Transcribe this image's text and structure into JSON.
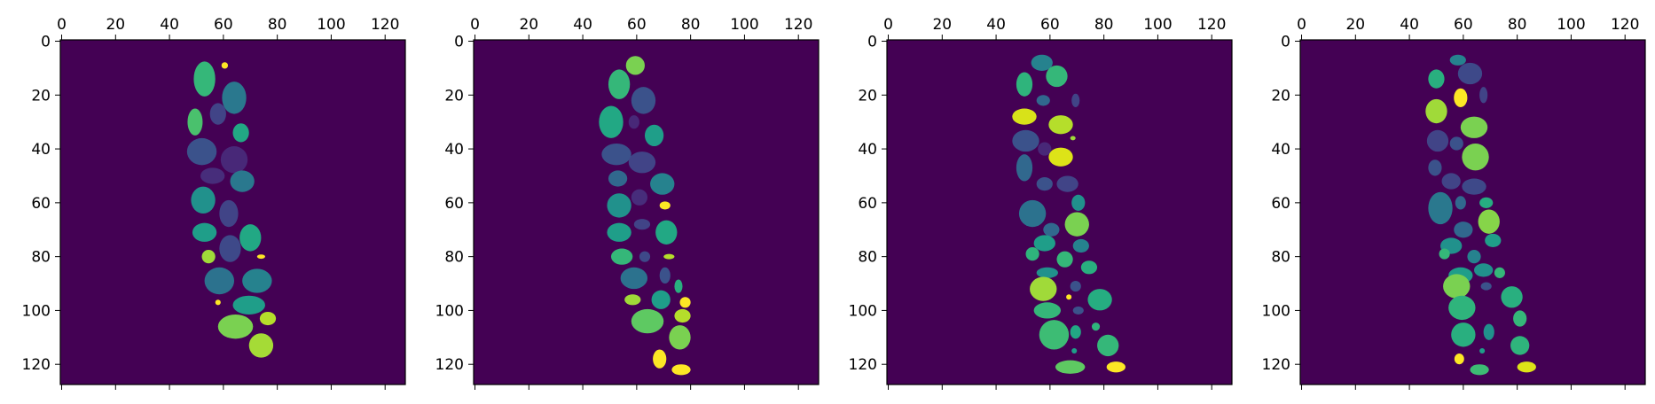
{
  "figure": {
    "background": "#ffffff",
    "panel_background": "#440154",
    "axis_color": "#000000",
    "colormap": "viridis"
  },
  "chart_data": [
    {
      "type": "heatmap",
      "x_ticks": [
        0,
        20,
        40,
        60,
        80,
        100,
        120
      ],
      "y_ticks": [
        0,
        20,
        40,
        60,
        80,
        100,
        120
      ],
      "xlim": [
        -0.5,
        127.5
      ],
      "ylim": [
        127.5,
        -0.5
      ],
      "x_axis_position": "top",
      "background_label": 0,
      "segments": [
        {
          "cx": 53,
          "cy": 14,
          "rx": 4.0,
          "ry": 6.5,
          "color": "#35b779"
        },
        {
          "cx": 60.5,
          "cy": 9,
          "rx": 1.2,
          "ry": 1.2,
          "color": "#fde725"
        },
        {
          "cx": 64,
          "cy": 21,
          "rx": 4.5,
          "ry": 6.0,
          "color": "#2a788e"
        },
        {
          "cx": 49.5,
          "cy": 30,
          "rx": 2.8,
          "ry": 5.0,
          "color": "#4ac16d"
        },
        {
          "cx": 58,
          "cy": 27,
          "rx": 3.0,
          "ry": 4.0,
          "color": "#414487"
        },
        {
          "cx": 66.5,
          "cy": 34,
          "rx": 3.0,
          "ry": 3.5,
          "color": "#22a884"
        },
        {
          "cx": 52,
          "cy": 41,
          "rx": 5.5,
          "ry": 5.0,
          "color": "#3b528b"
        },
        {
          "cx": 64,
          "cy": 44,
          "rx": 5.0,
          "ry": 5.0,
          "color": "#482878"
        },
        {
          "cx": 56,
          "cy": 50,
          "rx": 4.5,
          "ry": 3.0,
          "color": "#472d7b"
        },
        {
          "cx": 67,
          "cy": 52,
          "rx": 4.5,
          "ry": 4.0,
          "color": "#2a788e"
        },
        {
          "cx": 52.5,
          "cy": 59,
          "rx": 4.5,
          "ry": 5.0,
          "color": "#21918c"
        },
        {
          "cx": 62,
          "cy": 64,
          "rx": 3.5,
          "ry": 5.0,
          "color": "#414487"
        },
        {
          "cx": 53,
          "cy": 71,
          "rx": 4.5,
          "ry": 3.5,
          "color": "#1f9e89"
        },
        {
          "cx": 70,
          "cy": 73,
          "rx": 4.0,
          "ry": 5.0,
          "color": "#22a884"
        },
        {
          "cx": 62.5,
          "cy": 77,
          "rx": 4.0,
          "ry": 5.0,
          "color": "#3e4989"
        },
        {
          "cx": 54.5,
          "cy": 80,
          "rx": 2.5,
          "ry": 2.5,
          "color": "#a0da39"
        },
        {
          "cx": 74,
          "cy": 80,
          "rx": 1.5,
          "ry": 0.8,
          "color": "#fde725"
        },
        {
          "cx": 58.5,
          "cy": 89,
          "rx": 5.5,
          "ry": 5.0,
          "color": "#2c728e"
        },
        {
          "cx": 72.5,
          "cy": 89,
          "rx": 5.5,
          "ry": 4.5,
          "color": "#26828e"
        },
        {
          "cx": 69.5,
          "cy": 98,
          "rx": 6.0,
          "ry": 3.5,
          "color": "#1f9e89"
        },
        {
          "cx": 58,
          "cy": 97,
          "rx": 1.0,
          "ry": 1.0,
          "color": "#fde725"
        },
        {
          "cx": 64.5,
          "cy": 106,
          "rx": 6.5,
          "ry": 4.5,
          "color": "#7ad151"
        },
        {
          "cx": 76.5,
          "cy": 103,
          "rx": 3.0,
          "ry": 2.5,
          "color": "#b5de2b"
        },
        {
          "cx": 74,
          "cy": 113,
          "rx": 4.5,
          "ry": 4.5,
          "color": "#a5db36"
        }
      ]
    },
    {
      "type": "heatmap",
      "x_ticks": [
        0,
        20,
        40,
        60,
        80,
        100,
        120
      ],
      "y_ticks": [
        0,
        20,
        40,
        60,
        80,
        100,
        120
      ],
      "xlim": [
        -0.5,
        127.5
      ],
      "ylim": [
        127.5,
        -0.5
      ],
      "x_axis_position": "top",
      "background_label": 0,
      "segments": [
        {
          "cx": 59.5,
          "cy": 9,
          "rx": 3.5,
          "ry": 3.5,
          "color": "#7ad151"
        },
        {
          "cx": 53.5,
          "cy": 16,
          "rx": 4.0,
          "ry": 5.5,
          "color": "#35b779"
        },
        {
          "cx": 62.5,
          "cy": 22,
          "rx": 4.5,
          "ry": 5.0,
          "color": "#3b528b"
        },
        {
          "cx": 50.5,
          "cy": 30,
          "rx": 4.5,
          "ry": 6.0,
          "color": "#22a884"
        },
        {
          "cx": 59,
          "cy": 30,
          "rx": 2.0,
          "ry": 2.5,
          "color": "#482878"
        },
        {
          "cx": 66.5,
          "cy": 35,
          "rx": 3.5,
          "ry": 4.0,
          "color": "#1f9e89"
        },
        {
          "cx": 52.5,
          "cy": 42,
          "rx": 5.5,
          "ry": 4.0,
          "color": "#3b528b"
        },
        {
          "cx": 62,
          "cy": 45,
          "rx": 5.0,
          "ry": 4.0,
          "color": "#414487"
        },
        {
          "cx": 53,
          "cy": 51,
          "rx": 3.5,
          "ry": 3.0,
          "color": "#31688e"
        },
        {
          "cx": 69.5,
          "cy": 53,
          "rx": 4.5,
          "ry": 4.0,
          "color": "#26828e"
        },
        {
          "cx": 61,
          "cy": 58,
          "rx": 3.0,
          "ry": 3.0,
          "color": "#472d7b"
        },
        {
          "cx": 53.5,
          "cy": 61,
          "rx": 4.5,
          "ry": 4.5,
          "color": "#21918c"
        },
        {
          "cx": 70.5,
          "cy": 61,
          "rx": 2.0,
          "ry": 1.5,
          "color": "#fde725"
        },
        {
          "cx": 62,
          "cy": 68,
          "rx": 3.0,
          "ry": 2.0,
          "color": "#414487"
        },
        {
          "cx": 53.5,
          "cy": 71,
          "rx": 4.5,
          "ry": 3.5,
          "color": "#1f9e89"
        },
        {
          "cx": 71,
          "cy": 71,
          "rx": 4.0,
          "ry": 4.5,
          "color": "#22a884"
        },
        {
          "cx": 54.5,
          "cy": 80,
          "rx": 4.0,
          "ry": 3.0,
          "color": "#35b779"
        },
        {
          "cx": 63,
          "cy": 80,
          "rx": 2.0,
          "ry": 2.0,
          "color": "#3e4989"
        },
        {
          "cx": 72,
          "cy": 80,
          "rx": 2.0,
          "ry": 1.0,
          "color": "#b5de2b"
        },
        {
          "cx": 59,
          "cy": 88,
          "rx": 5.0,
          "ry": 4.0,
          "color": "#2c728e"
        },
        {
          "cx": 70.5,
          "cy": 87,
          "rx": 2.0,
          "ry": 3.0,
          "color": "#3b528b"
        },
        {
          "cx": 75.5,
          "cy": 91,
          "rx": 1.5,
          "ry": 2.5,
          "color": "#29af7f"
        },
        {
          "cx": 58.5,
          "cy": 96,
          "rx": 3.0,
          "ry": 2.0,
          "color": "#a0da39"
        },
        {
          "cx": 69,
          "cy": 96,
          "rx": 3.5,
          "ry": 3.5,
          "color": "#1f9e89"
        },
        {
          "cx": 78,
          "cy": 97,
          "rx": 2.0,
          "ry": 2.0,
          "color": "#fde725"
        },
        {
          "cx": 77,
          "cy": 102,
          "rx": 3.0,
          "ry": 2.5,
          "color": "#b5de2b"
        },
        {
          "cx": 64,
          "cy": 104,
          "rx": 6.0,
          "ry": 4.5,
          "color": "#5ec962"
        },
        {
          "cx": 76,
          "cy": 110,
          "rx": 4.0,
          "ry": 4.5,
          "color": "#7ad151"
        },
        {
          "cx": 68.5,
          "cy": 118,
          "rx": 2.5,
          "ry": 3.5,
          "color": "#fde725"
        },
        {
          "cx": 76.5,
          "cy": 122,
          "rx": 3.5,
          "ry": 2.0,
          "color": "#fde725"
        }
      ]
    },
    {
      "type": "heatmap",
      "x_ticks": [
        0,
        20,
        40,
        60,
        80,
        100,
        120
      ],
      "y_ticks": [
        0,
        20,
        40,
        60,
        80,
        100,
        120
      ],
      "xlim": [
        -0.5,
        127.5
      ],
      "ylim": [
        127.5,
        -0.5
      ],
      "x_axis_position": "top",
      "background_label": 0,
      "segments": [
        {
          "cx": 57,
          "cy": 8,
          "rx": 4.0,
          "ry": 3.0,
          "color": "#26828e"
        },
        {
          "cx": 50.5,
          "cy": 16,
          "rx": 3.0,
          "ry": 4.5,
          "color": "#2fb47c"
        },
        {
          "cx": 62.5,
          "cy": 13,
          "rx": 4.0,
          "ry": 4.0,
          "color": "#35b779"
        },
        {
          "cx": 57.5,
          "cy": 22,
          "rx": 2.5,
          "ry": 2.0,
          "color": "#31688e"
        },
        {
          "cx": 69.5,
          "cy": 22,
          "rx": 1.5,
          "ry": 2.5,
          "color": "#414487"
        },
        {
          "cx": 50.5,
          "cy": 28,
          "rx": 4.5,
          "ry": 3.0,
          "color": "#d8e219"
        },
        {
          "cx": 64,
          "cy": 31,
          "rx": 4.5,
          "ry": 3.5,
          "color": "#b5de2b"
        },
        {
          "cx": 51,
          "cy": 37,
          "rx": 5.0,
          "ry": 4.0,
          "color": "#3b528b"
        },
        {
          "cx": 58,
          "cy": 40,
          "rx": 2.5,
          "ry": 2.5,
          "color": "#482878"
        },
        {
          "cx": 68.5,
          "cy": 36,
          "rx": 1.0,
          "ry": 0.8,
          "color": "#a0da39"
        },
        {
          "cx": 64,
          "cy": 43,
          "rx": 4.5,
          "ry": 3.5,
          "color": "#dde318"
        },
        {
          "cx": 50.5,
          "cy": 47,
          "rx": 3.0,
          "ry": 5.0,
          "color": "#31688e"
        },
        {
          "cx": 58,
          "cy": 53,
          "rx": 3.0,
          "ry": 2.5,
          "color": "#3b528b"
        },
        {
          "cx": 66.5,
          "cy": 53,
          "rx": 4.0,
          "ry": 3.0,
          "color": "#414487"
        },
        {
          "cx": 53.5,
          "cy": 64,
          "rx": 5.0,
          "ry": 5.0,
          "color": "#2c728e"
        },
        {
          "cx": 70.5,
          "cy": 60,
          "rx": 2.5,
          "ry": 3.0,
          "color": "#21918c"
        },
        {
          "cx": 70,
          "cy": 68,
          "rx": 4.5,
          "ry": 4.5,
          "color": "#7ad151"
        },
        {
          "cx": 60.5,
          "cy": 70,
          "rx": 3.0,
          "ry": 2.5,
          "color": "#31688e"
        },
        {
          "cx": 58,
          "cy": 75,
          "rx": 4.0,
          "ry": 3.0,
          "color": "#1f9e89"
        },
        {
          "cx": 71.5,
          "cy": 76,
          "rx": 3.0,
          "ry": 2.5,
          "color": "#26828e"
        },
        {
          "cx": 53.5,
          "cy": 79,
          "rx": 2.5,
          "ry": 2.5,
          "color": "#2fb47c"
        },
        {
          "cx": 65.5,
          "cy": 81,
          "rx": 3.0,
          "ry": 3.0,
          "color": "#35b779"
        },
        {
          "cx": 74.5,
          "cy": 84,
          "rx": 3.0,
          "ry": 2.5,
          "color": "#29af7f"
        },
        {
          "cx": 59,
          "cy": 86,
          "rx": 4.0,
          "ry": 2.0,
          "color": "#21918c"
        },
        {
          "cx": 57.5,
          "cy": 92,
          "rx": 5.0,
          "ry": 4.5,
          "color": "#a0da39"
        },
        {
          "cx": 69.5,
          "cy": 91,
          "rx": 2.0,
          "ry": 2.0,
          "color": "#3b528b"
        },
        {
          "cx": 67,
          "cy": 95,
          "rx": 1.0,
          "ry": 1.0,
          "color": "#fde725"
        },
        {
          "cx": 78.5,
          "cy": 96,
          "rx": 4.5,
          "ry": 4.0,
          "color": "#26ad81"
        },
        {
          "cx": 59,
          "cy": 100,
          "rx": 5.0,
          "ry": 3.0,
          "color": "#35b779"
        },
        {
          "cx": 70.5,
          "cy": 100,
          "rx": 2.0,
          "ry": 1.5,
          "color": "#3b528b"
        },
        {
          "cx": 77,
          "cy": 106,
          "rx": 1.5,
          "ry": 1.5,
          "color": "#2fb47c"
        },
        {
          "cx": 61.5,
          "cy": 109,
          "rx": 5.5,
          "ry": 5.5,
          "color": "#3dbc74"
        },
        {
          "cx": 69.5,
          "cy": 108,
          "rx": 2.0,
          "ry": 2.5,
          "color": "#22a884"
        },
        {
          "cx": 81.5,
          "cy": 113,
          "rx": 4.0,
          "ry": 4.0,
          "color": "#35b779"
        },
        {
          "cx": 69,
          "cy": 115,
          "rx": 1.0,
          "ry": 1.0,
          "color": "#1f9e89"
        },
        {
          "cx": 67.5,
          "cy": 121,
          "rx": 5.5,
          "ry": 2.5,
          "color": "#5ec962"
        },
        {
          "cx": 84.5,
          "cy": 121,
          "rx": 3.5,
          "ry": 2.0,
          "color": "#fde725"
        }
      ]
    },
    {
      "type": "heatmap",
      "x_ticks": [
        0,
        20,
        40,
        60,
        80,
        100,
        120
      ],
      "y_ticks": [
        0,
        20,
        40,
        60,
        80,
        100,
        120
      ],
      "xlim": [
        -0.5,
        127.5
      ],
      "ylim": [
        127.5,
        -0.5
      ],
      "x_axis_position": "top",
      "background_label": 0,
      "segments": [
        {
          "cx": 58,
          "cy": 7,
          "rx": 3.0,
          "ry": 2.0,
          "color": "#26828e"
        },
        {
          "cx": 50,
          "cy": 14,
          "rx": 3.0,
          "ry": 3.5,
          "color": "#29af7f"
        },
        {
          "cx": 62.5,
          "cy": 12,
          "rx": 4.5,
          "ry": 4.0,
          "color": "#3e4989"
        },
        {
          "cx": 67.5,
          "cy": 20,
          "rx": 1.5,
          "ry": 3.0,
          "color": "#414487"
        },
        {
          "cx": 59,
          "cy": 21,
          "rx": 2.5,
          "ry": 3.5,
          "color": "#fde725"
        },
        {
          "cx": 50,
          "cy": 26,
          "rx": 4.0,
          "ry": 4.5,
          "color": "#a0da39"
        },
        {
          "cx": 64,
          "cy": 32,
          "rx": 5.0,
          "ry": 4.0,
          "color": "#7ad151"
        },
        {
          "cx": 50.5,
          "cy": 37,
          "rx": 4.0,
          "ry": 4.0,
          "color": "#414487"
        },
        {
          "cx": 57.5,
          "cy": 38,
          "rx": 2.5,
          "ry": 2.5,
          "color": "#3b528b"
        },
        {
          "cx": 64.5,
          "cy": 43,
          "rx": 5.0,
          "ry": 5.0,
          "color": "#7ad151"
        },
        {
          "cx": 49.5,
          "cy": 47,
          "rx": 2.5,
          "ry": 3.0,
          "color": "#3b528b"
        },
        {
          "cx": 55.5,
          "cy": 52,
          "rx": 3.5,
          "ry": 3.0,
          "color": "#414487"
        },
        {
          "cx": 64,
          "cy": 54,
          "rx": 4.5,
          "ry": 3.0,
          "color": "#3e4989"
        },
        {
          "cx": 51.5,
          "cy": 62,
          "rx": 4.5,
          "ry": 6.0,
          "color": "#2a788e"
        },
        {
          "cx": 59,
          "cy": 60,
          "rx": 2.0,
          "ry": 2.5,
          "color": "#31688e"
        },
        {
          "cx": 68.5,
          "cy": 60,
          "rx": 2.5,
          "ry": 2.0,
          "color": "#26ad81"
        },
        {
          "cx": 69.5,
          "cy": 67,
          "rx": 4.0,
          "ry": 4.5,
          "color": "#86d549"
        },
        {
          "cx": 60,
          "cy": 70,
          "rx": 3.5,
          "ry": 3.0,
          "color": "#31688e"
        },
        {
          "cx": 55.5,
          "cy": 76,
          "rx": 4.0,
          "ry": 3.0,
          "color": "#21918c"
        },
        {
          "cx": 71,
          "cy": 74,
          "rx": 3.0,
          "ry": 2.5,
          "color": "#1f9e89"
        },
        {
          "cx": 53,
          "cy": 79,
          "rx": 2.0,
          "ry": 2.0,
          "color": "#35b779"
        },
        {
          "cx": 64,
          "cy": 80,
          "rx": 2.5,
          "ry": 2.5,
          "color": "#26828e"
        },
        {
          "cx": 67.5,
          "cy": 85,
          "rx": 3.5,
          "ry": 2.5,
          "color": "#21918c"
        },
        {
          "cx": 73.5,
          "cy": 86,
          "rx": 2.0,
          "ry": 2.0,
          "color": "#35b779"
        },
        {
          "cx": 59,
          "cy": 87,
          "rx": 4.5,
          "ry": 3.0,
          "color": "#1f9e89"
        },
        {
          "cx": 57.5,
          "cy": 91,
          "rx": 5.0,
          "ry": 4.5,
          "color": "#7ad151"
        },
        {
          "cx": 68.5,
          "cy": 91,
          "rx": 2.0,
          "ry": 1.5,
          "color": "#3b528b"
        },
        {
          "cx": 78,
          "cy": 95,
          "rx": 4.0,
          "ry": 4.0,
          "color": "#29af7f"
        },
        {
          "cx": 59.5,
          "cy": 99,
          "rx": 5.0,
          "ry": 4.5,
          "color": "#2fb47c"
        },
        {
          "cx": 81,
          "cy": 103,
          "rx": 2.5,
          "ry": 3.0,
          "color": "#35b779"
        },
        {
          "cx": 60,
          "cy": 109,
          "rx": 4.5,
          "ry": 4.5,
          "color": "#29af7f"
        },
        {
          "cx": 69.5,
          "cy": 108,
          "rx": 2.0,
          "ry": 3.0,
          "color": "#21918c"
        },
        {
          "cx": 81,
          "cy": 113,
          "rx": 3.5,
          "ry": 3.5,
          "color": "#2fb47c"
        },
        {
          "cx": 67,
          "cy": 115,
          "rx": 1.0,
          "ry": 1.0,
          "color": "#1f9e89"
        },
        {
          "cx": 58.5,
          "cy": 118,
          "rx": 1.8,
          "ry": 2.0,
          "color": "#fde725"
        },
        {
          "cx": 66,
          "cy": 122,
          "rx": 3.5,
          "ry": 2.0,
          "color": "#3dbc74"
        },
        {
          "cx": 83.5,
          "cy": 121,
          "rx": 3.5,
          "ry": 2.0,
          "color": "#dde318"
        }
      ]
    }
  ]
}
